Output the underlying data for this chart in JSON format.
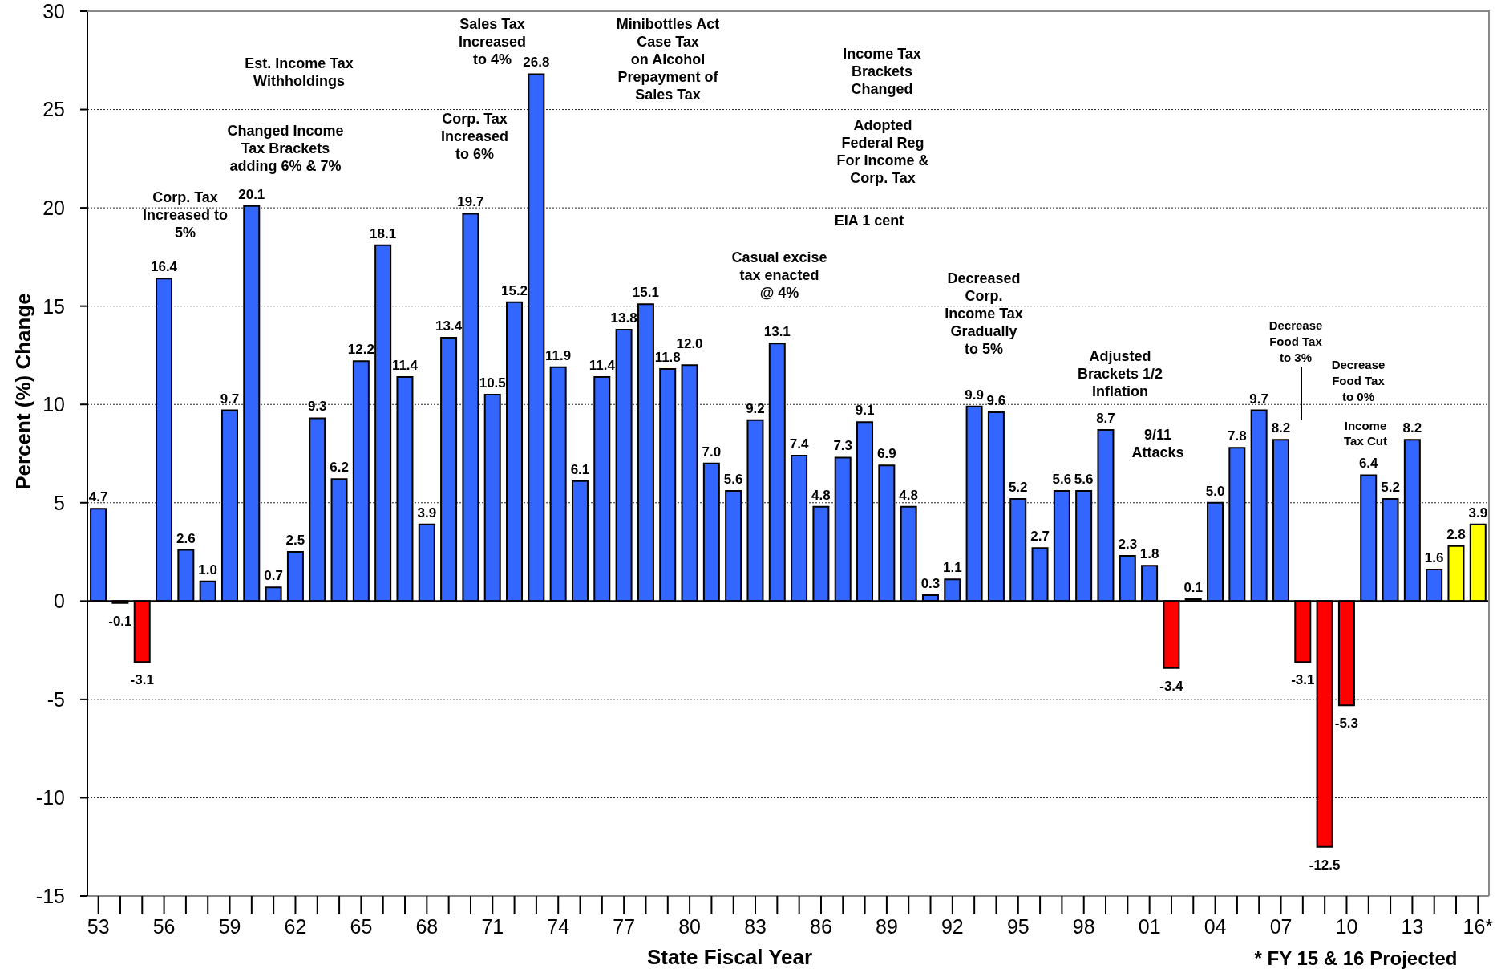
{
  "chart_data": {
    "type": "bar",
    "xlabel": "State Fiscal Year",
    "ylabel": "Percent (%) Change",
    "categories": [
      "53",
      null,
      null,
      "56",
      null,
      null,
      "59",
      null,
      null,
      "62",
      null,
      null,
      "65",
      null,
      null,
      "68",
      null,
      null,
      "71",
      null,
      null,
      "74",
      null,
      null,
      "77",
      null,
      null,
      "80",
      null,
      null,
      "83",
      null,
      null,
      "86",
      null,
      null,
      "89",
      null,
      null,
      "92",
      null,
      null,
      "95",
      null,
      null,
      "98",
      null,
      null,
      "01",
      null,
      null,
      "04",
      null,
      null,
      "07",
      null,
      null,
      "10",
      null,
      null,
      "13",
      null,
      null,
      "16*"
    ],
    "values": [
      4.7,
      -0.1,
      -3.1,
      16.4,
      2.6,
      1.0,
      9.7,
      20.1,
      0.7,
      2.5,
      9.3,
      6.2,
      12.2,
      18.1,
      11.4,
      3.9,
      13.4,
      19.7,
      10.5,
      15.2,
      26.8,
      11.9,
      6.1,
      11.4,
      13.8,
      15.1,
      11.8,
      12.0,
      7.0,
      5.6,
      9.2,
      13.1,
      7.4,
      4.8,
      7.3,
      9.1,
      6.9,
      4.8,
      0.3,
      1.1,
      9.9,
      9.6,
      5.2,
      2.7,
      5.6,
      5.6,
      8.7,
      2.3,
      1.8,
      -3.4,
      0.1,
      5.0,
      7.8,
      9.7,
      8.2,
      -3.1,
      -12.5,
      -5.3,
      6.4,
      5.2,
      8.2,
      1.6,
      2.8,
      3.9
    ],
    "value_labels": [
      "4.7",
      "-0.1",
      "-3.1",
      "16.4",
      "2.6",
      "1.0",
      "9.7",
      "20.1",
      "0.7",
      "2.5",
      "9.3",
      "6.2",
      "12.2",
      "18.1",
      "11.4",
      "3.9",
      "13.4",
      "19.7",
      "10.5",
      "15.2",
      "26.8",
      "11.9",
      "6.1",
      "11.4",
      "13.8",
      "15.1",
      "11.8",
      "12.0",
      "7.0",
      "5.6",
      "9.2",
      "13.1",
      "7.4",
      "4.8",
      "7.3",
      "9.1",
      "6.9",
      "4.8",
      "0.3",
      "1.1",
      "9.9",
      "9.6",
      "5.2",
      "2.7",
      "5.6",
      "5.6",
      "8.7",
      "2.3",
      "1.8",
      "-3.4",
      "0.1",
      "5.0",
      "7.8",
      "9.7",
      "8.2",
      "-3.1",
      "-12.5",
      "-5.3",
      "6.4",
      "5.2",
      "8.2",
      "1.6",
      "2.8",
      "3.9"
    ],
    "colors": [
      "#3366ff",
      "#ff0000",
      "#ff0000",
      "#3366ff",
      "#3366ff",
      "#3366ff",
      "#3366ff",
      "#3366ff",
      "#3366ff",
      "#3366ff",
      "#3366ff",
      "#3366ff",
      "#3366ff",
      "#3366ff",
      "#3366ff",
      "#3366ff",
      "#3366ff",
      "#3366ff",
      "#3366ff",
      "#3366ff",
      "#3366ff",
      "#3366ff",
      "#3366ff",
      "#3366ff",
      "#3366ff",
      "#3366ff",
      "#3366ff",
      "#3366ff",
      "#3366ff",
      "#3366ff",
      "#3366ff",
      "#3366ff",
      "#3366ff",
      "#3366ff",
      "#3366ff",
      "#3366ff",
      "#3366ff",
      "#3366ff",
      "#3366ff",
      "#3366ff",
      "#3366ff",
      "#3366ff",
      "#3366ff",
      "#3366ff",
      "#3366ff",
      "#3366ff",
      "#3366ff",
      "#3366ff",
      "#3366ff",
      "#ff0000",
      "#3366ff",
      "#3366ff",
      "#3366ff",
      "#3366ff",
      "#3366ff",
      "#ff0000",
      "#ff0000",
      "#ff0000",
      "#3366ff",
      "#3366ff",
      "#3366ff",
      "#3366ff",
      "#ffff00",
      "#ffff00"
    ],
    "ylim": [
      -15,
      30
    ],
    "yticks": [
      -15,
      -10,
      -5,
      0,
      5,
      10,
      15,
      20,
      25,
      30
    ],
    "grid": "y",
    "ref_lines": [
      {
        "axis": "y",
        "value": 0,
        "color": "#000000",
        "line_style": "solid"
      }
    ],
    "annotations": [
      "Corp. Tax\nIncreased to\n5%",
      "Est. Income Tax\nWithholdings",
      "Changed Income\nTax Brackets\nadding 6% & 7%",
      "Sales Tax\nIncreased\nto 4%",
      "Corp. Tax\nIncreased\nto 6%",
      "Minibottles Act\nCase Tax\non Alcohol\nPrepayment of\nSales Tax",
      "Income Tax\nBrackets\nChanged",
      "Adopted\nFederal Reg\nFor Income &\nCorp. Tax",
      "EIA 1 cent",
      "Casual excise\ntax enacted\n@ 4%",
      "Decreased\nCorp.\nIncome Tax\nGradually\nto 5%",
      "Adjusted\nBrackets 1/2\nInflation",
      "9/11\nAttacks",
      "Decrease\nFood Tax\nto 3%",
      "Decrease\nFood Tax\nto 0%",
      "Income\nTax Cut",
      "* FY 15 & 16 Projected"
    ]
  }
}
